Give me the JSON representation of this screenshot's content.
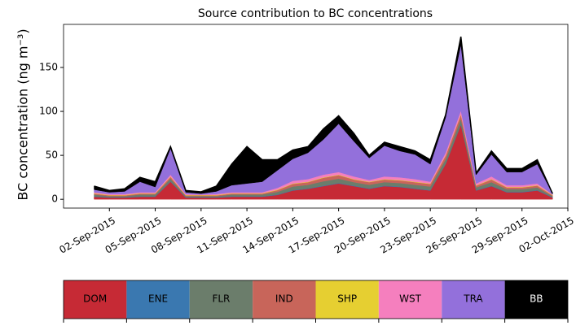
{
  "chart_data": {
    "type": "stacked-area",
    "title": "Source contribution to BC concentrations",
    "y_label": "BC concentration (ng m⁻³)",
    "x": [
      "2015-09-01",
      "2015-09-02",
      "2015-09-03",
      "2015-09-04",
      "2015-09-05",
      "2015-09-06",
      "2015-09-07",
      "2015-09-08",
      "2015-09-09",
      "2015-09-10",
      "2015-09-11",
      "2015-09-12",
      "2015-09-13",
      "2015-09-14",
      "2015-09-15",
      "2015-09-16",
      "2015-09-17",
      "2015-09-18",
      "2015-09-19",
      "2015-09-20",
      "2015-09-21",
      "2015-09-22",
      "2015-09-23",
      "2015-09-24",
      "2015-09-25",
      "2015-09-26",
      "2015-09-27",
      "2015-09-28",
      "2015-09-29",
      "2015-09-30",
      "2015-10-01"
    ],
    "xlim": [
      "2015-08-30",
      "2015-10-02"
    ],
    "xticks": [
      {
        "value": "2015-09-02",
        "label": "02-Sep-2015"
      },
      {
        "value": "2015-09-05",
        "label": "05-Sep-2015"
      },
      {
        "value": "2015-09-08",
        "label": "08-Sep-2015"
      },
      {
        "value": "2015-09-11",
        "label": "11-Sep-2015"
      },
      {
        "value": "2015-09-14",
        "label": "14-Sep-2015"
      },
      {
        "value": "2015-09-17",
        "label": "17-Sep-2015"
      },
      {
        "value": "2015-09-20",
        "label": "20-Sep-2015"
      },
      {
        "value": "2015-09-23",
        "label": "23-Sep-2015"
      },
      {
        "value": "2015-09-26",
        "label": "26-Sep-2015"
      },
      {
        "value": "2015-09-29",
        "label": "29-Sep-2015"
      },
      {
        "value": "2015-10-02",
        "label": "02-Oct-2015"
      }
    ],
    "ylim": [
      -10,
      199
    ],
    "yticks": [
      0,
      50,
      100,
      150
    ],
    "series": [
      {
        "name": "DOM",
        "color": "#c62a35",
        "values": [
          3,
          2,
          2,
          3,
          3,
          20,
          2,
          2,
          2,
          3,
          3,
          3,
          5,
          10,
          12,
          15,
          18,
          15,
          12,
          15,
          14,
          12,
          10,
          40,
          85,
          10,
          15,
          8,
          8,
          10,
          2
        ]
      },
      {
        "name": "ENE",
        "color": "#3a78b0",
        "values": [
          0.5,
          0.5,
          0.5,
          0.5,
          0.5,
          0.5,
          0.5,
          0.5,
          0.5,
          0.5,
          0.5,
          0.5,
          0.5,
          0.5,
          0.5,
          0.5,
          0.5,
          0.5,
          0.5,
          0.5,
          0.5,
          0.5,
          0.5,
          0.5,
          0.5,
          0.5,
          0.5,
          0.5,
          0.5,
          0.5,
          0.5
        ]
      },
      {
        "name": "FLR",
        "color": "#6b7d6b",
        "values": [
          2,
          1,
          1,
          2,
          2,
          3,
          1,
          1,
          1,
          2,
          2,
          2,
          3,
          4,
          4,
          5,
          5,
          4,
          4,
          4,
          4,
          4,
          4,
          5,
          6,
          3,
          4,
          3,
          3,
          3,
          1
        ]
      },
      {
        "name": "IND",
        "color": "#c8655a",
        "values": [
          1,
          1,
          1,
          1,
          1,
          2,
          1,
          1,
          1,
          1,
          1,
          1,
          2,
          3,
          3,
          4,
          4,
          3,
          3,
          3,
          3,
          3,
          3,
          4,
          5,
          2,
          3,
          2,
          2,
          2,
          1
        ]
      },
      {
        "name": "SHP",
        "color": "#e6cf31",
        "values": [
          0.5,
          0.5,
          0.5,
          0.5,
          0.5,
          0.5,
          0.5,
          0.5,
          0.5,
          0.5,
          0.5,
          0.5,
          0.5,
          0.5,
          0.5,
          0.5,
          0.5,
          0.5,
          0.5,
          0.5,
          0.5,
          0.5,
          0.5,
          0.5,
          0.5,
          0.5,
          0.5,
          0.5,
          0.5,
          0.5,
          0.5
        ]
      },
      {
        "name": "WST",
        "color": "#f57fbe",
        "values": [
          1,
          1,
          1,
          1,
          1,
          2,
          1,
          0.5,
          1,
          1,
          1,
          1,
          2,
          3,
          3,
          3,
          3,
          3,
          2,
          3,
          3,
          3,
          2,
          3,
          4,
          2,
          3,
          2,
          2,
          2,
          0.5
        ]
      },
      {
        "name": "TRA",
        "color": "#9370db",
        "values": [
          3,
          2,
          3,
          12,
          6,
          30,
          2,
          1,
          3,
          8,
          10,
          12,
          20,
          25,
          30,
          40,
          55,
          40,
          25,
          35,
          30,
          28,
          20,
          40,
          75,
          10,
          25,
          15,
          15,
          22,
          1
        ]
      },
      {
        "name": "BB",
        "color": "#000000",
        "values": [
          4,
          2,
          3,
          5,
          6,
          2,
          2,
          2,
          6,
          24,
          42,
          25,
          12,
          10,
          7,
          12,
          9,
          9,
          3,
          4,
          5,
          4,
          5,
          3,
          9,
          2,
          4,
          4,
          4,
          5,
          0
        ]
      }
    ]
  }
}
